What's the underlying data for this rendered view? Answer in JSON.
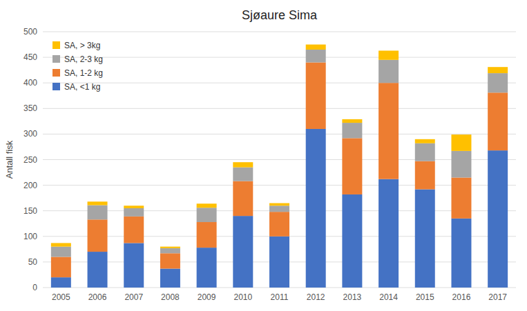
{
  "chart_data": {
    "type": "bar",
    "title": "Sjøaure Sima",
    "ylabel": "Antall fisk",
    "categories": [
      2005,
      2006,
      2007,
      2008,
      2009,
      2010,
      2011,
      2012,
      2013,
      2014,
      2015,
      2016,
      2017
    ],
    "series": [
      {
        "name": "SA, <1 kg",
        "color": "#4472C4",
        "values": [
          20,
          70,
          87,
          37,
          78,
          140,
          100,
          310,
          182,
          212,
          192,
          135,
          268
        ]
      },
      {
        "name": "SA, 1-2 kg",
        "color": "#ED7D31",
        "values": [
          40,
          63,
          52,
          30,
          50,
          68,
          48,
          130,
          110,
          188,
          55,
          80,
          113
        ]
      },
      {
        "name": "SA, 2-3 kg",
        "color": "#A5A5A5",
        "values": [
          20,
          28,
          16,
          10,
          28,
          27,
          12,
          25,
          30,
          45,
          35,
          52,
          38
        ]
      },
      {
        "name": "SA, > 3kg",
        "color": "#FFC000",
        "values": [
          7,
          7,
          5,
          3,
          8,
          10,
          5,
          10,
          7,
          18,
          8,
          32,
          12
        ]
      }
    ],
    "stacked": true,
    "ylim": [
      0,
      500
    ],
    "yticks": [
      0,
      50,
      100,
      150,
      200,
      250,
      300,
      350,
      400,
      450,
      500
    ],
    "grid": true,
    "legend": "upper-left"
  }
}
